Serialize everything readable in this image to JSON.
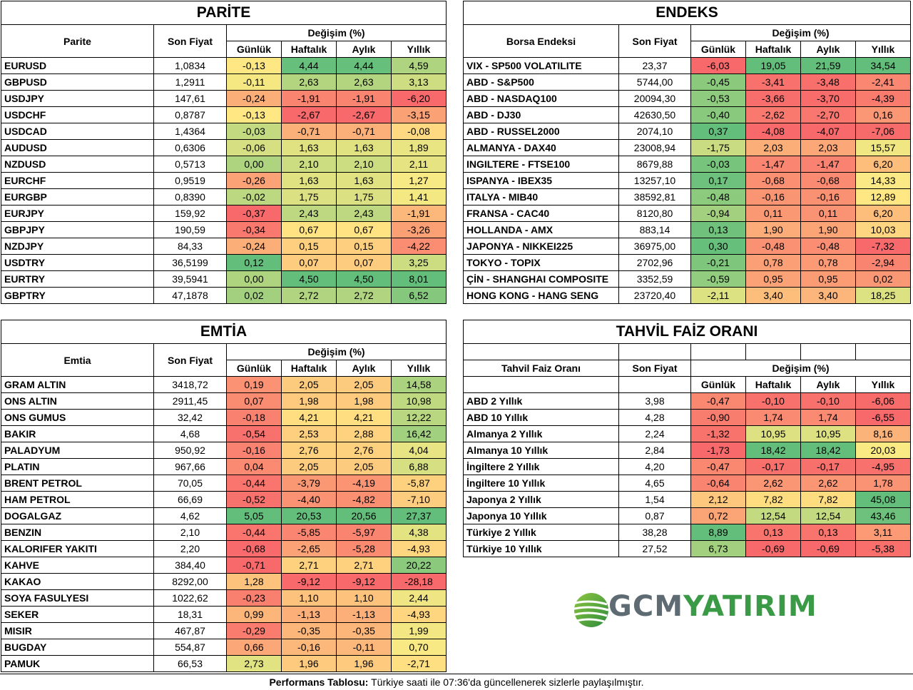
{
  "parite": {
    "title": "PARİTE",
    "col_name": "Parite",
    "col_price": "Son Fiyat",
    "col_change": "Değişim (%)",
    "cols": [
      "Günlük",
      "Haftalık",
      "Aylık",
      "Yıllık"
    ],
    "rows": [
      {
        "name": "EURUSD",
        "price": "1,0834",
        "vals": [
          "-0,13",
          "4,44",
          "4,44",
          "4,59"
        ]
      },
      {
        "name": "GBPUSD",
        "price": "1,2911",
        "vals": [
          "-0,11",
          "2,63",
          "2,63",
          "3,13"
        ]
      },
      {
        "name": "USDJPY",
        "price": "147,61",
        "vals": [
          "-0,24",
          "-1,91",
          "-1,91",
          "-6,20"
        ]
      },
      {
        "name": "USDCHF",
        "price": "0,8787",
        "vals": [
          "-0,13",
          "-2,67",
          "-2,67",
          "-3,15"
        ]
      },
      {
        "name": "USDCAD",
        "price": "1,4364",
        "vals": [
          "-0,03",
          "-0,71",
          "-0,71",
          "-0,08"
        ]
      },
      {
        "name": "AUDUSD",
        "price": "0,6306",
        "vals": [
          "-0,06",
          "1,63",
          "1,63",
          "1,89"
        ]
      },
      {
        "name": "NZDUSD",
        "price": "0,5713",
        "vals": [
          "0,00",
          "2,10",
          "2,10",
          "2,11"
        ]
      },
      {
        "name": "EURCHF",
        "price": "0,9519",
        "vals": [
          "-0,26",
          "1,63",
          "1,63",
          "1,27"
        ]
      },
      {
        "name": "EURGBP",
        "price": "0,8390",
        "vals": [
          "-0,02",
          "1,75",
          "1,75",
          "1,41"
        ]
      },
      {
        "name": "EURJPY",
        "price": "159,92",
        "vals": [
          "-0,37",
          "2,43",
          "2,43",
          "-1,91"
        ]
      },
      {
        "name": "GBPJPY",
        "price": "190,59",
        "vals": [
          "-0,34",
          "0,67",
          "0,67",
          "-3,26"
        ]
      },
      {
        "name": "NZDJPY",
        "price": "84,33",
        "vals": [
          "-0,24",
          "0,15",
          "0,15",
          "-4,22"
        ]
      },
      {
        "name": "USDTRY",
        "price": "36,5199",
        "vals": [
          "0,12",
          "0,07",
          "0,07",
          "3,25"
        ]
      },
      {
        "name": "EURTRY",
        "price": "39,5941",
        "vals": [
          "0,00",
          "4,50",
          "4,50",
          "8,01"
        ]
      },
      {
        "name": "GBPTRY",
        "price": "47,1878",
        "vals": [
          "0,02",
          "2,72",
          "2,72",
          "6,52"
        ]
      }
    ]
  },
  "endeks": {
    "title": "ENDEKS",
    "col_name": "Borsa Endeksi",
    "col_price": "Son Fiyat",
    "col_change": "Değişim (%)",
    "cols": [
      "Günlük",
      "Haftalık",
      "Aylık",
      "Yıllık"
    ],
    "rows": [
      {
        "name": "VIX  - SP500 VOLATILITE",
        "price": "23,37",
        "vals": [
          "-6,03",
          "19,05",
          "21,59",
          "34,54"
        ]
      },
      {
        "name": "ABD - S&P500",
        "price": "5744,00",
        "vals": [
          "-0,45",
          "-3,41",
          "-3,48",
          "-2,41"
        ]
      },
      {
        "name": "ABD - NASDAQ100",
        "price": "20094,30",
        "vals": [
          "-0,53",
          "-3,66",
          "-3,70",
          "-4,39"
        ]
      },
      {
        "name": "ABD - DJ30",
        "price": "42630,50",
        "vals": [
          "-0,40",
          "-2,62",
          "-2,70",
          "0,16"
        ]
      },
      {
        "name": "ABD - RUSSEL2000",
        "price": "2074,10",
        "vals": [
          "0,37",
          "-4,08",
          "-4,07",
          "-7,06"
        ]
      },
      {
        "name": "ALMANYA - DAX40",
        "price": "23008,94",
        "vals": [
          "-1,75",
          "2,03",
          "2,03",
          "15,57"
        ]
      },
      {
        "name": "INGILTERE - FTSE100",
        "price": "8679,88",
        "vals": [
          "-0,03",
          "-1,47",
          "-1,47",
          "6,20"
        ]
      },
      {
        "name": "ISPANYA - IBEX35",
        "price": "13257,10",
        "vals": [
          "0,17",
          "-0,68",
          "-0,68",
          "14,33"
        ]
      },
      {
        "name": "ITALYA - MIB40",
        "price": "38592,81",
        "vals": [
          "-0,48",
          "-0,16",
          "-0,16",
          "12,89"
        ]
      },
      {
        "name": "FRANSA - CAC40",
        "price": "8120,80",
        "vals": [
          "-0,94",
          "0,11",
          "0,11",
          "6,20"
        ]
      },
      {
        "name": "HOLLANDA - AMX",
        "price": "883,14",
        "vals": [
          "0,13",
          "1,90",
          "1,90",
          "10,03"
        ]
      },
      {
        "name": "JAPONYA - NIKKEI225",
        "price": "36975,00",
        "vals": [
          "0,30",
          "-0,48",
          "-0,48",
          "-7,32"
        ]
      },
      {
        "name": "TOKYO - TOPIX",
        "price": "2702,96",
        "vals": [
          "-0,21",
          "0,78",
          "0,78",
          "-2,94"
        ]
      },
      {
        "name": "ÇİN - SHANGHAI COMPOSITE",
        "price": "3352,59",
        "vals": [
          "-0,59",
          "0,95",
          "0,95",
          "0,02"
        ]
      },
      {
        "name": "HONG KONG - HANG SENG",
        "price": "23720,40",
        "vals": [
          "-2,11",
          "3,40",
          "3,40",
          "18,25"
        ]
      }
    ]
  },
  "emtia": {
    "title": "EMTİA",
    "col_name": "Emtia",
    "col_price": "Son Fiyat",
    "col_change": "Değişim (%)",
    "cols": [
      "Günlük",
      "Haftalık",
      "Aylık",
      "Yıllık"
    ],
    "rows": [
      {
        "name": "GRAM ALTIN",
        "price": "3418,72",
        "vals": [
          "0,19",
          "2,05",
          "2,05",
          "14,58"
        ]
      },
      {
        "name": "ONS ALTIN",
        "price": "2911,45",
        "vals": [
          "0,07",
          "1,98",
          "1,98",
          "10,98"
        ]
      },
      {
        "name": "ONS GUMUS",
        "price": "32,42",
        "vals": [
          "-0,18",
          "4,21",
          "4,21",
          "12,22"
        ]
      },
      {
        "name": "BAKIR",
        "price": "4,68",
        "vals": [
          "-0,54",
          "2,53",
          "2,88",
          "16,42"
        ]
      },
      {
        "name": "PALADYUM",
        "price": "950,92",
        "vals": [
          "-0,16",
          "2,76",
          "2,76",
          "4,04"
        ]
      },
      {
        "name": "PLATIN",
        "price": "967,66",
        "vals": [
          "0,04",
          "2,05",
          "2,05",
          "6,88"
        ]
      },
      {
        "name": "BRENT PETROL",
        "price": "70,05",
        "vals": [
          "-0,44",
          "-3,79",
          "-4,19",
          "-5,87"
        ]
      },
      {
        "name": "HAM PETROL",
        "price": "66,69",
        "vals": [
          "-0,52",
          "-4,40",
          "-4,82",
          "-7,10"
        ]
      },
      {
        "name": "DOGALGAZ",
        "price": "4,62",
        "vals": [
          "5,05",
          "20,53",
          "20,56",
          "27,37"
        ]
      },
      {
        "name": "BENZIN",
        "price": "2,10",
        "vals": [
          "-0,44",
          "-5,85",
          "-5,97",
          "4,38"
        ]
      },
      {
        "name": "KALORIFER YAKITI",
        "price": "2,20",
        "vals": [
          "-0,68",
          "-2,65",
          "-5,28",
          "-4,93"
        ]
      },
      {
        "name": "KAHVE",
        "price": "384,40",
        "vals": [
          "-0,71",
          "2,71",
          "2,71",
          "20,22"
        ]
      },
      {
        "name": "KAKAO",
        "price": "8292,00",
        "vals": [
          "1,28",
          "-9,12",
          "-9,12",
          "-28,18"
        ]
      },
      {
        "name": "SOYA FASULYESI",
        "price": "1022,62",
        "vals": [
          "-0,23",
          "1,10",
          "1,10",
          "2,44"
        ]
      },
      {
        "name": "SEKER",
        "price": "18,31",
        "vals": [
          "0,99",
          "-1,13",
          "-1,13",
          "-4,93"
        ]
      },
      {
        "name": "MISIR",
        "price": "467,87",
        "vals": [
          "-0,29",
          "-0,35",
          "-0,35",
          "1,99"
        ]
      },
      {
        "name": "BUGDAY",
        "price": "554,87",
        "vals": [
          "0,66",
          "-0,16",
          "-0,11",
          "0,70"
        ]
      },
      {
        "name": "PAMUK",
        "price": "66,53",
        "vals": [
          "2,73",
          "1,96",
          "1,96",
          "-2,71"
        ]
      }
    ]
  },
  "tahvil": {
    "title": "TAHVİL FAİZ ORANI",
    "col_name": "Tahvil Faiz Oranı",
    "col_price": "Son Fiyat",
    "col_change": "Değişim (%)",
    "cols": [
      "Günlük",
      "Haftalık",
      "Aylık",
      "Yıllık"
    ],
    "rows": [
      {
        "name": "ABD 2 Yıllık",
        "price": "3,98",
        "vals": [
          "-0,47",
          "-0,10",
          "-0,10",
          "-6,06"
        ]
      },
      {
        "name": "ABD 10 Yıllık",
        "price": "4,28",
        "vals": [
          "-0,90",
          "1,74",
          "1,74",
          "-6,55"
        ]
      },
      {
        "name": "Almanya 2 Yıllık",
        "price": "2,24",
        "vals": [
          "-1,32",
          "10,95",
          "10,95",
          "8,16"
        ]
      },
      {
        "name": "Almanya 10 Yıllık",
        "price": "2,84",
        "vals": [
          "-1,73",
          "18,42",
          "18,42",
          "20,03"
        ]
      },
      {
        "name": "İngiltere 2 Yıllık",
        "price": "4,20",
        "vals": [
          "-0,47",
          "-0,17",
          "-0,17",
          "-4,95"
        ]
      },
      {
        "name": "İngiltere 10 Yıllık",
        "price": "4,65",
        "vals": [
          "-0,64",
          "2,62",
          "2,62",
          "1,78"
        ]
      },
      {
        "name": "Japonya 2 Yıllık",
        "price": "1,54",
        "vals": [
          "2,12",
          "7,82",
          "7,82",
          "45,08"
        ]
      },
      {
        "name": "Japonya 10 Yıllık",
        "price": "0,87",
        "vals": [
          "0,72",
          "12,54",
          "12,54",
          "43,46"
        ]
      },
      {
        "name": "Türkiye 2 Yıllık",
        "price": "38,28",
        "vals": [
          "8,89",
          "0,13",
          "0,13",
          "3,11"
        ]
      },
      {
        "name": "Türkiye 10 Yıllık",
        "price": "27,52",
        "vals": [
          "6,73",
          "-0,69",
          "-0,69",
          "-5,38"
        ]
      }
    ]
  },
  "logo": {
    "part1": "GCM",
    "part2": "YATIRIM"
  },
  "footer": {
    "bold": "Performans Tablosu:",
    "text": " Türkiye saati ile 07:36'da güncellenerek sizlerle paylaşılmıştır."
  },
  "colors": {
    "red": "#f8696b",
    "orange": "#fbaa77",
    "yellow": "#ffeb84",
    "lightgreen": "#c6df80",
    "green": "#63be7b"
  }
}
